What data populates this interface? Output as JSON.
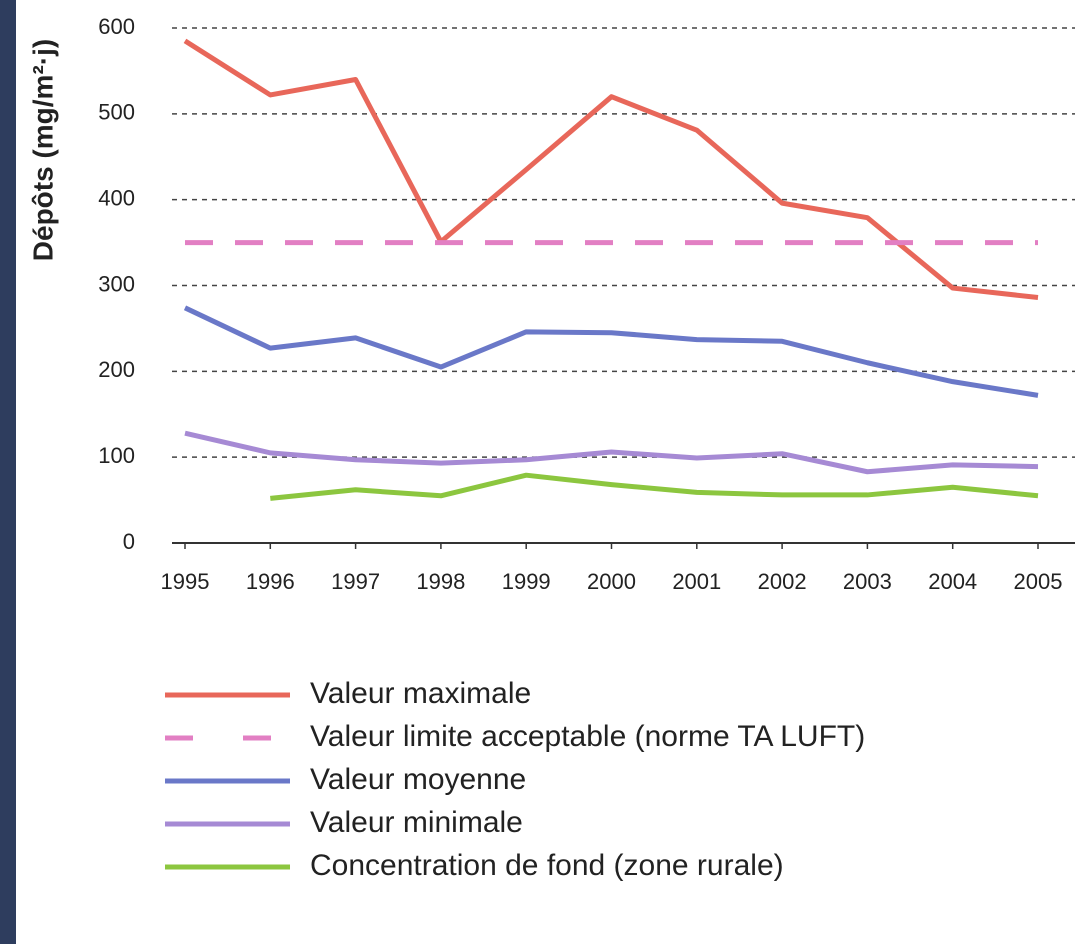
{
  "chart_data": {
    "type": "line",
    "y_label": "Dépôts (mg/m²·j)",
    "categories": [
      "1995",
      "1996",
      "1997",
      "1998",
      "1999",
      "2000",
      "2001",
      "2002",
      "2003",
      "2004",
      "2005"
    ],
    "series": [
      {
        "name": "Valeur maximale",
        "color": "#e8675a",
        "dashed": false,
        "values": [
          585,
          522,
          540,
          351,
          435,
          520,
          481,
          396,
          379,
          297,
          286
        ]
      },
      {
        "name": "Valeur limite acceptable (norme TA LUFT)",
        "color": "#e27fc3",
        "dashed": true,
        "values": [
          350,
          350,
          350,
          350,
          350,
          350,
          350,
          350,
          350,
          350,
          350
        ]
      },
      {
        "name": "Valeur moyenne",
        "color": "#6a78c8",
        "dashed": false,
        "values": [
          274,
          227,
          239,
          205,
          246,
          245,
          237,
          235,
          210,
          188,
          172
        ]
      },
      {
        "name": "Valeur minimale",
        "color": "#a68ad4",
        "dashed": false,
        "values": [
          128,
          105,
          97,
          93,
          97,
          106,
          99,
          104,
          83,
          91,
          89
        ]
      },
      {
        "name": "Concentration de fond (zone rurale)",
        "color": "#8cc63f",
        "dashed": false,
        "values": [
          null,
          52,
          62,
          55,
          79,
          68,
          59,
          56,
          56,
          65,
          55
        ]
      }
    ],
    "ylim": [
      0,
      600
    ],
    "yticks": [
      0,
      100,
      200,
      300,
      400,
      500,
      600
    ],
    "grid": true,
    "legend": "bottom"
  }
}
